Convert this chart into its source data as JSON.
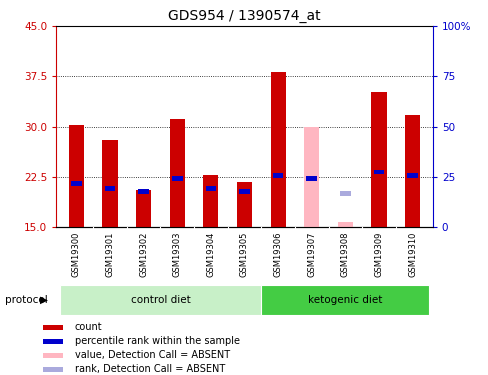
{
  "title": "GDS954 / 1390574_at",
  "samples": [
    "GSM19300",
    "GSM19301",
    "GSM19302",
    "GSM19303",
    "GSM19304",
    "GSM19305",
    "GSM19306",
    "GSM19307",
    "GSM19308",
    "GSM19309",
    "GSM19310"
  ],
  "count_values": [
    30.2,
    28.0,
    20.5,
    31.2,
    22.8,
    21.7,
    38.2,
    null,
    null,
    35.2,
    31.8
  ],
  "rank_values": [
    21.5,
    20.7,
    20.3,
    22.2,
    20.7,
    20.3,
    22.7,
    22.2,
    null,
    23.2,
    22.7
  ],
  "absent_count_values": [
    null,
    null,
    null,
    null,
    null,
    null,
    null,
    30.0,
    15.8,
    null,
    null
  ],
  "absent_rank_values": [
    null,
    null,
    null,
    null,
    null,
    null,
    null,
    null,
    20.0,
    null,
    null
  ],
  "ylim_left": [
    15,
    45
  ],
  "ylim_right": [
    0,
    100
  ],
  "yticks_left": [
    15,
    22.5,
    30,
    37.5,
    45
  ],
  "yticks_right": [
    0,
    25,
    50,
    75,
    100
  ],
  "color_count": "#cc0000",
  "color_rank": "#0000cc",
  "color_absent_count": "#ffb6c1",
  "color_absent_rank": "#aaaadd",
  "bg_label": "#d3d3d3",
  "bg_ctrl": "#c8f0c8",
  "bg_keto": "#44cc44",
  "legend_items": [
    {
      "label": "count",
      "color": "#cc0000"
    },
    {
      "label": "percentile rank within the sample",
      "color": "#0000cc"
    },
    {
      "label": "value, Detection Call = ABSENT",
      "color": "#ffb6c1"
    },
    {
      "label": "rank, Detection Call = ABSENT",
      "color": "#aaaadd"
    }
  ],
  "bar_width": 0.45
}
